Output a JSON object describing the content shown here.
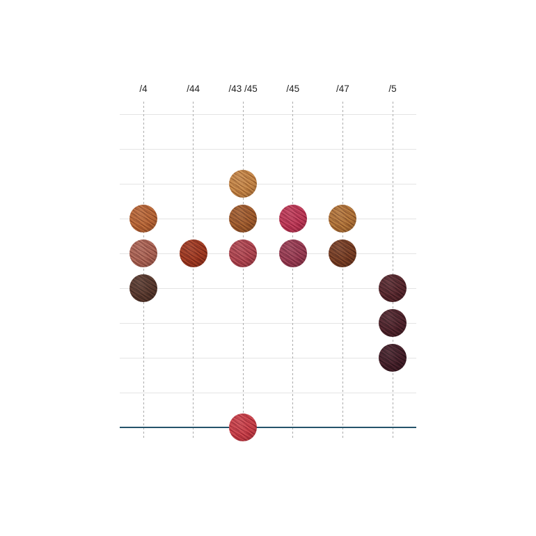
{
  "chart_data": {
    "type": "scatter",
    "title": "",
    "xlabel": "",
    "ylabel": "",
    "legend": "none",
    "grid": "on",
    "categories": [
      "/4",
      "/44",
      "/43 /45",
      "/45",
      "/47",
      "/5"
    ],
    "rows_total": 10,
    "baseline_row": 9,
    "gridline_rows": [
      0,
      1,
      2,
      3,
      4,
      5,
      6,
      7,
      8
    ],
    "columns": [
      {
        "label": "/4",
        "swatches": [
          {
            "row": 3,
            "base": "#b05a2f",
            "hi": "#d07f48",
            "lo": "#7e3f1e"
          },
          {
            "row": 4,
            "base": "#a3574a",
            "hi": "#c37e6c",
            "lo": "#743a30"
          },
          {
            "row": 5,
            "base": "#503229",
            "hi": "#6f483a",
            "lo": "#33201a"
          }
        ]
      },
      {
        "label": "/44",
        "swatches": [
          {
            "row": 4,
            "base": "#962f1c",
            "hi": "#ba4e2d",
            "lo": "#661d10"
          }
        ]
      },
      {
        "label": "/43 /45",
        "swatches": [
          {
            "row": 2,
            "base": "#bd7a3d",
            "hi": "#dca05e",
            "lo": "#8a5323"
          },
          {
            "row": 3,
            "base": "#985129",
            "hi": "#ba7238",
            "lo": "#68391b"
          },
          {
            "row": 4,
            "base": "#a83a47",
            "hi": "#c75f66",
            "lo": "#792631"
          },
          {
            "row": 9,
            "base": "#c2333f",
            "hi": "#dd5a5f",
            "lo": "#8f1f2b"
          }
        ]
      },
      {
        "label": "/45",
        "swatches": [
          {
            "row": 3,
            "base": "#b52b4c",
            "hi": "#d4546e",
            "lo": "#871c36"
          },
          {
            "row": 4,
            "base": "#91304a",
            "hi": "#b05467",
            "lo": "#652033"
          }
        ]
      },
      {
        "label": "/47",
        "swatches": [
          {
            "row": 3,
            "base": "#a96730",
            "hi": "#c98e4b",
            "lo": "#774620"
          },
          {
            "row": 4,
            "base": "#6e3520",
            "hi": "#91512f",
            "lo": "#482112"
          }
        ]
      },
      {
        "label": "/5",
        "swatches": [
          {
            "row": 5,
            "base": "#4e2228",
            "hi": "#70363c",
            "lo": "#2f1217"
          },
          {
            "row": 6,
            "base": "#461f27",
            "hi": "#663039",
            "lo": "#2a1015"
          },
          {
            "row": 7,
            "base": "#3c1a24",
            "hi": "#5a2b36",
            "lo": "#220e14"
          }
        ]
      }
    ],
    "colors": {
      "gridline": "#e4e4e4",
      "column_guide": "#ababab",
      "baseline": "#24536a",
      "label_text": "#222222",
      "background": "#ffffff"
    }
  }
}
